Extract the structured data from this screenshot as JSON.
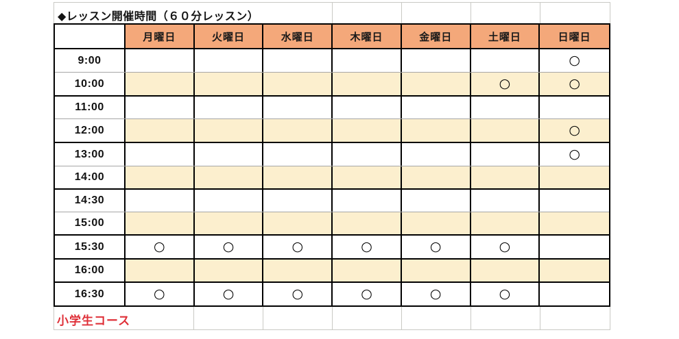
{
  "title": "◆レッスン開催時間（６０分レッスン）",
  "footer_label": "小学生コース",
  "colors": {
    "header_bg": "#f4a87a",
    "stripe_bg": "#fcefce",
    "grid_black": "#000000",
    "grid_gray": "#a6a6a6",
    "outer_gridline_gray": "#c9c9c4",
    "footer_text_red": "#df3038",
    "mark_color": "#000000"
  },
  "schedule": {
    "corner_label": "",
    "days": [
      "月曜日",
      "火曜日",
      "水曜日",
      "木曜日",
      "金曜日",
      "土曜日",
      "日曜日"
    ],
    "mark_symbol": "○",
    "rows": [
      {
        "time": "9:00",
        "marks": [
          "",
          "",
          "",
          "",
          "",
          "",
          "○"
        ]
      },
      {
        "time": "10:00",
        "marks": [
          "",
          "",
          "",
          "",
          "",
          "○",
          "○"
        ]
      },
      {
        "time": "11:00",
        "marks": [
          "",
          "",
          "",
          "",
          "",
          "",
          ""
        ]
      },
      {
        "time": "12:00",
        "marks": [
          "",
          "",
          "",
          "",
          "",
          "",
          "○"
        ]
      },
      {
        "time": "13:00",
        "marks": [
          "",
          "",
          "",
          "",
          "",
          "",
          "○"
        ]
      },
      {
        "time": "14:00",
        "marks": [
          "",
          "",
          "",
          "",
          "",
          "",
          ""
        ]
      },
      {
        "time": "14:30",
        "marks": [
          "",
          "",
          "",
          "",
          "",
          "",
          ""
        ]
      },
      {
        "time": "15:00",
        "marks": [
          "",
          "",
          "",
          "",
          "",
          "",
          ""
        ]
      },
      {
        "time": "15:30",
        "marks": [
          "○",
          "○",
          "○",
          "○",
          "○",
          "○",
          ""
        ]
      },
      {
        "time": "16:00",
        "marks": [
          "",
          "",
          "",
          "",
          "",
          "",
          ""
        ]
      },
      {
        "time": "16:30",
        "marks": [
          "○",
          "○",
          "○",
          "○",
          "○",
          "○",
          ""
        ]
      }
    ]
  }
}
